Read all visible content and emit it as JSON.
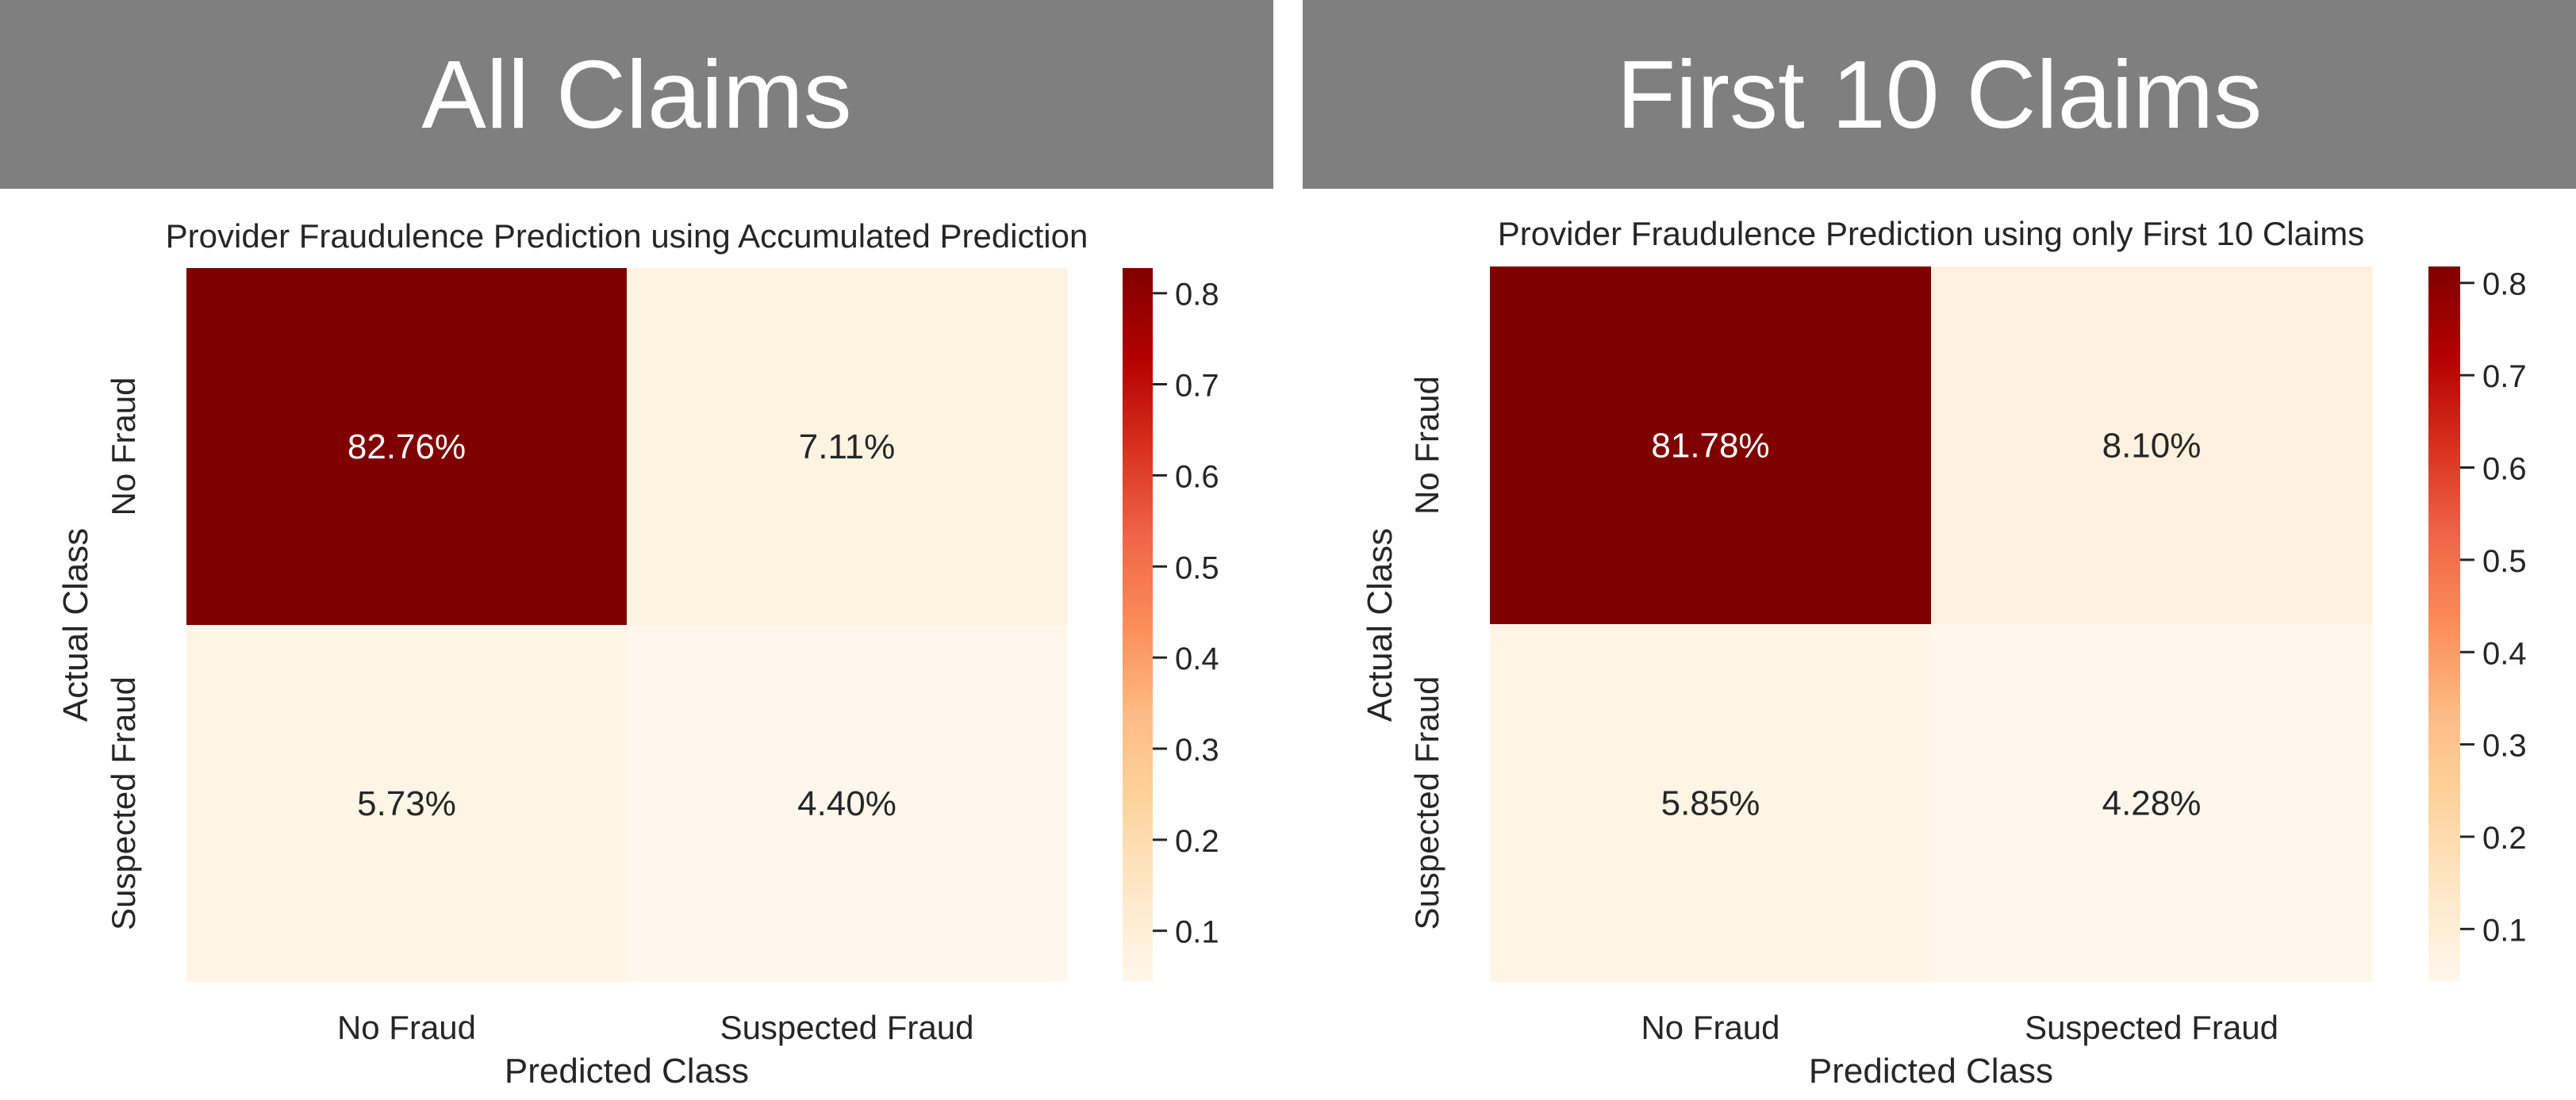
{
  "banners": {
    "left": "All Claims",
    "right": "First 10 Claims"
  },
  "chart_data": [
    {
      "type": "heatmap",
      "title": "Provider Fraudulence Prediction using Accumulated Prediction",
      "xlabel": "Predicted Class",
      "ylabel": "Actual Class",
      "x_categories": [
        "No Fraud",
        "Suspected Fraud"
      ],
      "y_categories": [
        "No Fraud",
        "Suspected Fraud"
      ],
      "values": [
        [
          0.8276,
          0.0711
        ],
        [
          0.0573,
          0.044
        ]
      ],
      "annotations": [
        [
          "82.76%",
          "7.11%"
        ],
        [
          "5.73%",
          "4.40%"
        ]
      ],
      "colorbar": {
        "min": 0.044,
        "max": 0.8276,
        "ticks": [
          "0.1",
          "0.2",
          "0.3",
          "0.4",
          "0.5",
          "0.6",
          "0.7",
          "0.8"
        ]
      },
      "colormap": [
        "#fff7ec",
        "#fee8c8",
        "#fdd49e",
        "#fdbb84",
        "#fc8d59",
        "#ef6548",
        "#d7301f",
        "#b30000",
        "#7f0000"
      ]
    },
    {
      "type": "heatmap",
      "title": "Provider Fraudulence Prediction using only First 10 Claims",
      "xlabel": "Predicted Class",
      "ylabel": "Actual Class",
      "x_categories": [
        "No Fraud",
        "Suspected Fraud"
      ],
      "y_categories": [
        "No Fraud",
        "Suspected Fraud"
      ],
      "values": [
        [
          0.8178,
          0.081
        ],
        [
          0.0585,
          0.0428
        ]
      ],
      "annotations": [
        [
          "81.78%",
          "8.10%"
        ],
        [
          "5.85%",
          "4.28%"
        ]
      ],
      "colorbar": {
        "min": 0.0428,
        "max": 0.8178,
        "ticks": [
          "0.1",
          "0.2",
          "0.3",
          "0.4",
          "0.5",
          "0.6",
          "0.7",
          "0.8"
        ]
      },
      "colormap": [
        "#fff7ec",
        "#fee8c8",
        "#fdd49e",
        "#fdbb84",
        "#fc8d59",
        "#ef6548",
        "#d7301f",
        "#b30000",
        "#7f0000"
      ]
    }
  ]
}
